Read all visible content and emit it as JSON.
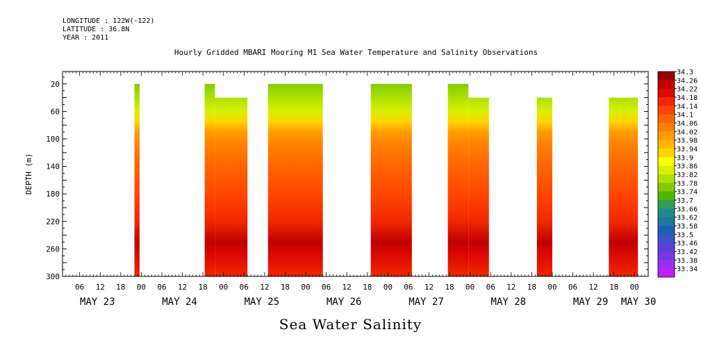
{
  "header": {
    "longitude": "LONGITUDE : 122W(-122)",
    "latitude": "LATITUDE : 36.8N",
    "year": "YEAR : 2011"
  },
  "chart_data": {
    "type": "heatmap",
    "title": "Hourly Gridded MBARI Mooring M1 Sea Water Temperature and Salinity Observations",
    "bottom_title": "Sea Water Salinity",
    "ylabel": "DEPTH (m)",
    "y_ticks": [
      20,
      60,
      100,
      140,
      180,
      220,
      260,
      300
    ],
    "ylim": [
      300,
      2
    ],
    "y_inverted": true,
    "x_hour_ticks": [
      "06",
      "12",
      "18",
      "00",
      "06",
      "12",
      "18",
      "00",
      "06",
      "12",
      "18",
      "00",
      "06",
      "12",
      "18",
      "00",
      "06",
      "12",
      "18",
      "00",
      "06",
      "12",
      "18",
      "00",
      "06",
      "12",
      "18",
      "00",
      "06",
      "12",
      "18",
      "00"
    ],
    "x_date_labels": [
      "MAY 23",
      "MAY 24",
      "MAY 25",
      "MAY 26",
      "MAY 27",
      "MAY 28",
      "MAY 29",
      "MAY 30"
    ],
    "time_range_hours_from_may23_00": [
      1,
      172
    ],
    "colorbar": {
      "levels": [
        "34.3",
        "34.26",
        "34.22",
        "34.18",
        "34.14",
        "34.1",
        "34.06",
        "34.02",
        "33.98",
        "33.94",
        "33.9",
        "33.86",
        "33.82",
        "33.78",
        "33.74",
        "33.7",
        "33.66",
        "33.62",
        "33.58",
        "33.5",
        "33.46",
        "33.42",
        "33.38",
        "33.34"
      ],
      "colors": [
        "#9a0000",
        "#c00000",
        "#dc0a00",
        "#f02800",
        "#ff4600",
        "#ff6400",
        "#ff8000",
        "#ff9c00",
        "#ffb800",
        "#ffd400",
        "#ffff00",
        "#d8f000",
        "#b0e000",
        "#80cc00",
        "#50b800",
        "#2ea050",
        "#1e8c8c",
        "#1e78a0",
        "#1e60b0",
        "#3c50c8",
        "#5a40d8",
        "#7838e4",
        "#9830f0",
        "#c020ff"
      ]
    },
    "data_segments": [
      {
        "start_hour": 22,
        "end_hour": 23.5,
        "top_depth": 20
      },
      {
        "start_hour": 42.5,
        "end_hour": 45.5,
        "top_depth": 20
      },
      {
        "start_hour": 45.5,
        "end_hour": 55,
        "top_depth": 40
      },
      {
        "start_hour": 61,
        "end_hour": 77,
        "top_depth": 20
      },
      {
        "start_hour": 91,
        "end_hour": 103,
        "top_depth": 20
      },
      {
        "start_hour": 113.5,
        "end_hour": 119.5,
        "top_depth": 20
      },
      {
        "start_hour": 119.5,
        "end_hour": 125.5,
        "top_depth": 40
      },
      {
        "start_hour": 139.5,
        "end_hour": 144,
        "top_depth": 40
      },
      {
        "start_hour": 160.5,
        "end_hour": 169,
        "top_depth": 40
      }
    ],
    "salinity_profile": [
      {
        "depth": 20,
        "salinity": 33.78
      },
      {
        "depth": 40,
        "salinity": 33.82
      },
      {
        "depth": 60,
        "salinity": 33.86
      },
      {
        "depth": 75,
        "salinity": 33.94
      },
      {
        "depth": 90,
        "salinity": 34.0
      },
      {
        "depth": 110,
        "salinity": 34.06
      },
      {
        "depth": 140,
        "salinity": 34.12
      },
      {
        "depth": 180,
        "salinity": 34.14
      },
      {
        "depth": 220,
        "salinity": 34.18
      },
      {
        "depth": 250,
        "salinity": 34.26
      },
      {
        "depth": 270,
        "salinity": 34.22
      },
      {
        "depth": 300,
        "salinity": 34.18
      }
    ]
  }
}
